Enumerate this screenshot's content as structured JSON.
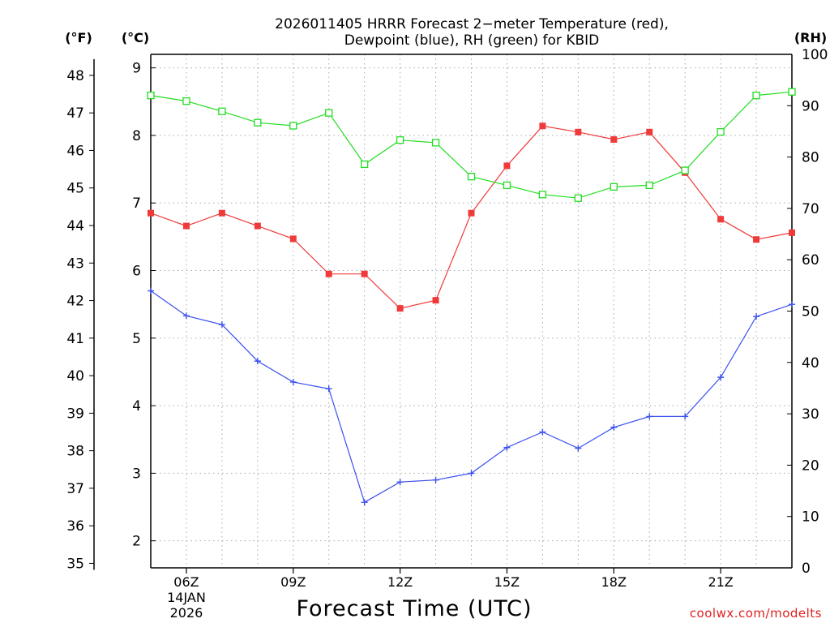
{
  "chart_data": {
    "type": "line",
    "title_lines": [
      "2026011405 HRRR Forecast 2−meter Temperature (red),",
      "Dewpoint (blue), RH (green) for KBID"
    ],
    "xlabel": "Forecast Time (UTC)",
    "credit": "coolwx.com/modelts",
    "left_axis_f_label": "(°F)",
    "left_axis_c_label": "(°C)",
    "right_axis_label": "(RH)",
    "x_hours_range": [
      5,
      23
    ],
    "x_ticks": [
      {
        "hour": 6,
        "label": "06Z",
        "date_line1": "14JAN",
        "date_line2": "2026"
      },
      {
        "hour": 9,
        "label": "09Z"
      },
      {
        "hour": 12,
        "label": "12Z"
      },
      {
        "hour": 15,
        "label": "15Z"
      },
      {
        "hour": 18,
        "label": "18Z"
      },
      {
        "hour": 21,
        "label": "21Z"
      }
    ],
    "c_axis": {
      "range": [
        1.6,
        9.2
      ],
      "ticks": [
        2,
        3,
        4,
        5,
        6,
        7,
        8,
        9
      ]
    },
    "f_axis": {
      "ticks": [
        35,
        36,
        37,
        38,
        39,
        40,
        41,
        42,
        43,
        44,
        45,
        46,
        47,
        48
      ]
    },
    "rh_axis": {
      "range": [
        0,
        100
      ],
      "ticks": [
        0,
        10,
        20,
        30,
        40,
        50,
        60,
        70,
        80,
        90,
        100
      ]
    },
    "hours": [
      5,
      6,
      7,
      8,
      9,
      10,
      11,
      12,
      13,
      14,
      15,
      16,
      17,
      18,
      19,
      20,
      21,
      22,
      23
    ],
    "series": [
      {
        "name": "Temperature",
        "axis": "C",
        "color": "#f03a3a",
        "marker": "filled-square",
        "values": [
          6.85,
          6.66,
          6.85,
          6.66,
          6.47,
          5.95,
          5.95,
          5.44,
          5.56,
          6.85,
          7.55,
          8.14,
          8.05,
          7.94,
          8.05,
          7.45,
          6.76,
          6.46,
          6.56
        ]
      },
      {
        "name": "Dewpoint",
        "axis": "C",
        "color": "#3a50f0",
        "marker": "plus",
        "values": [
          5.7,
          5.33,
          5.2,
          4.66,
          4.35,
          4.25,
          2.57,
          2.87,
          2.9,
          3.0,
          3.38,
          3.61,
          3.37,
          3.68,
          3.84,
          3.84,
          4.42,
          5.32,
          5.5
        ]
      },
      {
        "name": "RH",
        "axis": "RH",
        "color": "#22dd22",
        "marker": "open-square",
        "values": [
          92.0,
          90.9,
          88.9,
          86.7,
          86.1,
          88.6,
          78.6,
          83.3,
          82.8,
          76.2,
          74.5,
          72.7,
          72.0,
          74.2,
          74.5,
          77.4,
          84.9,
          92.0,
          92.7
        ]
      }
    ]
  }
}
